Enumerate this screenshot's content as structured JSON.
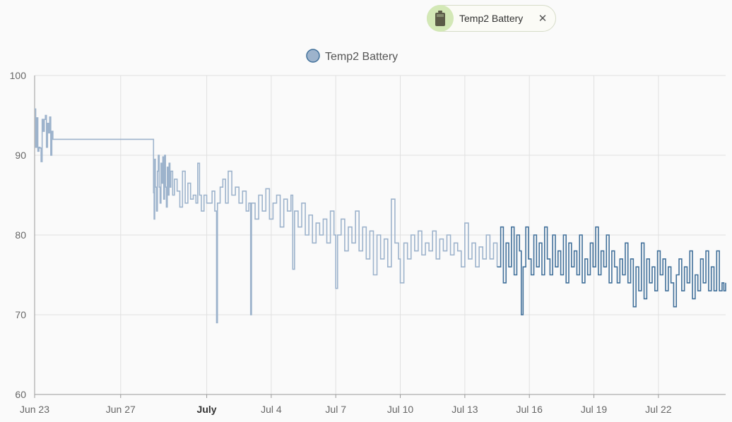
{
  "chip": {
    "label": "Temp2 Battery",
    "close_glyph": "✕",
    "icon": "battery-icon"
  },
  "colors": {
    "series_light": "#9db3cc",
    "series_dark": "#41709a",
    "legend_fill": "#9db3cc",
    "legend_stroke": "#41709a",
    "chip_accent": "#d3e8b6",
    "grid": "#e0e0e0"
  },
  "chart_data": {
    "type": "line",
    "step": true,
    "legend": {
      "label": "Temp2 Battery",
      "placement": "top-center"
    },
    "ylim": [
      60,
      100
    ],
    "yticks": [
      60,
      70,
      80,
      90,
      100
    ],
    "xlim": [
      "2023-06-23",
      "2023-07-25T03:00"
    ],
    "xticks": [
      {
        "date": "2023-06-23",
        "label": "Jun 23",
        "bold": false
      },
      {
        "date": "2023-06-27",
        "label": "Jun 27",
        "bold": false
      },
      {
        "date": "2023-07-01",
        "label": "July",
        "bold": true
      },
      {
        "date": "2023-07-04",
        "label": "Jul 4",
        "bold": false
      },
      {
        "date": "2023-07-07",
        "label": "Jul 7",
        "bold": false
      },
      {
        "date": "2023-07-10",
        "label": "Jul 10",
        "bold": false
      },
      {
        "date": "2023-07-13",
        "label": "Jul 13",
        "bold": false
      },
      {
        "date": "2023-07-16",
        "label": "Jul 16",
        "bold": false
      },
      {
        "date": "2023-07-19",
        "label": "Jul 19",
        "bold": false
      },
      {
        "date": "2023-07-22",
        "label": "Jul 22",
        "bold": false
      }
    ],
    "grid": true,
    "highlight_from": "2023-07-14T16:00",
    "series": [
      {
        "name": "Temp2 Battery",
        "points": [
          [
            "2023-06-23T00:00",
            95.8
          ],
          [
            "2023-06-23T01:12",
            91.0
          ],
          [
            "2023-06-23T02:24",
            94.7
          ],
          [
            "2023-06-23T03:36",
            90.5
          ],
          [
            "2023-06-23T04:48",
            91.0
          ],
          [
            "2023-06-23T06:00",
            90.9
          ],
          [
            "2023-06-23T07:12",
            89.2
          ],
          [
            "2023-06-23T08:24",
            94.5
          ],
          [
            "2023-06-23T09:36",
            93.0
          ],
          [
            "2023-06-23T10:48",
            94.5
          ],
          [
            "2023-06-23T12:00",
            95.0
          ],
          [
            "2023-06-23T13:12",
            91.0
          ],
          [
            "2023-06-23T14:24",
            94.0
          ],
          [
            "2023-06-23T15:36",
            92.8
          ],
          [
            "2023-06-23T16:48",
            94.8
          ],
          [
            "2023-06-23T18:00",
            90.0
          ],
          [
            "2023-06-23T19:12",
            93.0
          ],
          [
            "2023-06-23T20:24",
            92.0
          ],
          [
            "2023-06-28T12:00",
            92.0
          ],
          [
            "2023-06-28T12:40",
            85.3
          ],
          [
            "2023-06-28T13:20",
            82.0
          ],
          [
            "2023-06-28T14:00",
            89.5
          ],
          [
            "2023-06-28T14:40",
            86.0
          ],
          [
            "2023-06-28T16:00",
            83.0
          ],
          [
            "2023-06-28T17:00",
            88.0
          ],
          [
            "2023-06-28T18:00",
            90.0
          ],
          [
            "2023-06-28T19:00",
            86.0
          ],
          [
            "2023-06-28T20:00",
            84.0
          ],
          [
            "2023-06-28T21:00",
            89.0
          ],
          [
            "2023-06-28T22:00",
            86.5
          ],
          [
            "2023-06-28T23:00",
            89.8
          ],
          [
            "2023-06-29T00:00",
            84.5
          ],
          [
            "2023-06-29T01:00",
            90.0
          ],
          [
            "2023-06-29T02:00",
            86.0
          ],
          [
            "2023-06-29T03:00",
            83.5
          ],
          [
            "2023-06-29T04:00",
            88.5
          ],
          [
            "2023-06-29T05:00",
            85.0
          ],
          [
            "2023-06-29T06:00",
            89.0
          ],
          [
            "2023-06-29T07:00",
            86.0
          ],
          [
            "2023-06-29T08:00",
            88.0
          ],
          [
            "2023-06-29T10:00",
            85.0
          ],
          [
            "2023-06-29T12:00",
            87.0
          ],
          [
            "2023-06-29T15:00",
            85.5
          ],
          [
            "2023-06-29T18:00",
            83.5
          ],
          [
            "2023-06-29T21:00",
            88.0
          ],
          [
            "2023-06-30T00:00",
            84.0
          ],
          [
            "2023-06-30T03:00",
            86.5
          ],
          [
            "2023-06-30T06:00",
            84.5
          ],
          [
            "2023-06-30T09:00",
            85.0
          ],
          [
            "2023-06-30T12:00",
            84.0
          ],
          [
            "2023-06-30T14:00",
            89.0
          ],
          [
            "2023-06-30T16:00",
            85.0
          ],
          [
            "2023-06-30T18:00",
            83.0
          ],
          [
            "2023-06-30T21:00",
            85.0
          ],
          [
            "2023-07-01T00:00",
            84.0
          ],
          [
            "2023-07-01T06:00",
            85.5
          ],
          [
            "2023-07-01T09:00",
            83.0
          ],
          [
            "2023-07-01T11:00",
            69.0
          ],
          [
            "2023-07-01T12:00",
            84.0
          ],
          [
            "2023-07-01T15:00",
            86.0
          ],
          [
            "2023-07-01T18:00",
            87.0
          ],
          [
            "2023-07-01T21:00",
            84.0
          ],
          [
            "2023-07-02T00:00",
            88.0
          ],
          [
            "2023-07-02T04:00",
            85.0
          ],
          [
            "2023-07-02T08:00",
            86.0
          ],
          [
            "2023-07-02T12:00",
            84.0
          ],
          [
            "2023-07-02T16:00",
            85.5
          ],
          [
            "2023-07-02T20:00",
            83.0
          ],
          [
            "2023-07-02T23:00",
            84.0
          ],
          [
            "2023-07-03T01:00",
            70.0
          ],
          [
            "2023-07-03T02:00",
            84.0
          ],
          [
            "2023-07-03T06:00",
            82.0
          ],
          [
            "2023-07-03T10:00",
            85.0
          ],
          [
            "2023-07-03T14:00",
            83.0
          ],
          [
            "2023-07-03T18:00",
            85.8
          ],
          [
            "2023-07-03T22:00",
            82.0
          ],
          [
            "2023-07-04T02:00",
            84.0
          ],
          [
            "2023-07-04T06:00",
            85.0
          ],
          [
            "2023-07-04T10:00",
            81.0
          ],
          [
            "2023-07-04T14:00",
            84.5
          ],
          [
            "2023-07-04T18:00",
            83.0
          ],
          [
            "2023-07-04T22:00",
            85.0
          ],
          [
            "2023-07-05T00:00",
            75.7
          ],
          [
            "2023-07-05T02:00",
            83.0
          ],
          [
            "2023-07-05T06:00",
            81.0
          ],
          [
            "2023-07-05T10:00",
            84.0
          ],
          [
            "2023-07-05T14:00",
            80.0
          ],
          [
            "2023-07-05T18:00",
            82.5
          ],
          [
            "2023-07-05T22:00",
            79.0
          ],
          [
            "2023-07-06T02:00",
            81.5
          ],
          [
            "2023-07-06T06:00",
            80.0
          ],
          [
            "2023-07-06T10:00",
            82.0
          ],
          [
            "2023-07-06T14:00",
            79.0
          ],
          [
            "2023-07-06T18:00",
            83.0
          ],
          [
            "2023-07-06T22:00",
            80.0
          ],
          [
            "2023-07-07T00:00",
            73.3
          ],
          [
            "2023-07-07T02:00",
            80.0
          ],
          [
            "2023-07-07T06:00",
            82.0
          ],
          [
            "2023-07-07T10:00",
            78.0
          ],
          [
            "2023-07-07T14:00",
            81.0
          ],
          [
            "2023-07-07T18:00",
            79.0
          ],
          [
            "2023-07-07T22:00",
            83.0
          ],
          [
            "2023-07-08T02:00",
            78.0
          ],
          [
            "2023-07-08T06:00",
            81.0
          ],
          [
            "2023-07-08T10:00",
            77.0
          ],
          [
            "2023-07-08T14:00",
            80.5
          ],
          [
            "2023-07-08T18:00",
            75.0
          ],
          [
            "2023-07-08T22:00",
            80.0
          ],
          [
            "2023-07-09T02:00",
            77.0
          ],
          [
            "2023-07-09T06:00",
            79.5
          ],
          [
            "2023-07-09T10:00",
            76.0
          ],
          [
            "2023-07-09T14:00",
            84.5
          ],
          [
            "2023-07-09T18:00",
            79.0
          ],
          [
            "2023-07-09T22:00",
            77.0
          ],
          [
            "2023-07-10T00:00",
            74.0
          ],
          [
            "2023-07-10T04:00",
            79.0
          ],
          [
            "2023-07-10T08:00",
            77.0
          ],
          [
            "2023-07-10T12:00",
            80.0
          ],
          [
            "2023-07-10T16:00",
            78.0
          ],
          [
            "2023-07-10T20:00",
            80.5
          ],
          [
            "2023-07-11T00:00",
            77.5
          ],
          [
            "2023-07-11T04:00",
            79.0
          ],
          [
            "2023-07-11T08:00",
            78.0
          ],
          [
            "2023-07-11T12:00",
            80.5
          ],
          [
            "2023-07-11T16:00",
            77.0
          ],
          [
            "2023-07-11T20:00",
            79.5
          ],
          [
            "2023-07-12T00:00",
            78.0
          ],
          [
            "2023-07-12T04:00",
            80.0
          ],
          [
            "2023-07-12T08:00",
            77.5
          ],
          [
            "2023-07-12T12:00",
            79.0
          ],
          [
            "2023-07-12T16:00",
            78.0
          ],
          [
            "2023-07-12T20:00",
            76.0
          ],
          [
            "2023-07-13T00:00",
            81.5
          ],
          [
            "2023-07-13T04:00",
            77.0
          ],
          [
            "2023-07-13T08:00",
            79.0
          ],
          [
            "2023-07-13T12:00",
            76.0
          ],
          [
            "2023-07-13T16:00",
            78.5
          ],
          [
            "2023-07-13T20:00",
            77.0
          ],
          [
            "2023-07-14T00:00",
            80.0
          ],
          [
            "2023-07-14T04:00",
            77.0
          ],
          [
            "2023-07-14T08:00",
            79.0
          ],
          [
            "2023-07-14T12:00",
            76.0
          ],
          [
            "2023-07-14T16:00",
            81.0
          ],
          [
            "2023-07-14T19:00",
            74.0
          ],
          [
            "2023-07-14T22:00",
            79.0
          ],
          [
            "2023-07-15T01:00",
            76.0
          ],
          [
            "2023-07-15T04:00",
            81.0
          ],
          [
            "2023-07-15T07:00",
            75.0
          ],
          [
            "2023-07-15T10:00",
            80.0
          ],
          [
            "2023-07-15T13:00",
            78.0
          ],
          [
            "2023-07-15T15:00",
            70.0
          ],
          [
            "2023-07-15T17:00",
            76.0
          ],
          [
            "2023-07-15T20:00",
            81.0
          ],
          [
            "2023-07-15T23:00",
            77.0
          ],
          [
            "2023-07-16T02:00",
            75.0
          ],
          [
            "2023-07-16T05:00",
            80.0
          ],
          [
            "2023-07-16T08:00",
            76.0
          ],
          [
            "2023-07-16T11:00",
            79.0
          ],
          [
            "2023-07-16T14:00",
            75.0
          ],
          [
            "2023-07-16T17:00",
            81.0
          ],
          [
            "2023-07-16T20:00",
            77.0
          ],
          [
            "2023-07-16T23:00",
            75.0
          ],
          [
            "2023-07-17T02:00",
            80.0
          ],
          [
            "2023-07-17T05:00",
            76.0
          ],
          [
            "2023-07-17T08:00",
            78.0
          ],
          [
            "2023-07-17T11:00",
            75.0
          ],
          [
            "2023-07-17T14:00",
            80.0
          ],
          [
            "2023-07-17T17:00",
            74.0
          ],
          [
            "2023-07-17T20:00",
            79.0
          ],
          [
            "2023-07-17T23:00",
            76.0
          ],
          [
            "2023-07-18T02:00",
            78.0
          ],
          [
            "2023-07-18T05:00",
            75.0
          ],
          [
            "2023-07-18T08:00",
            80.0
          ],
          [
            "2023-07-18T11:00",
            74.0
          ],
          [
            "2023-07-18T14:00",
            77.0
          ],
          [
            "2023-07-18T17:00",
            75.0
          ],
          [
            "2023-07-18T20:00",
            79.0
          ],
          [
            "2023-07-18T23:00",
            76.0
          ],
          [
            "2023-07-19T02:00",
            81.0
          ],
          [
            "2023-07-19T05:00",
            75.0
          ],
          [
            "2023-07-19T08:00",
            78.0
          ],
          [
            "2023-07-19T11:00",
            76.0
          ],
          [
            "2023-07-19T14:00",
            80.0
          ],
          [
            "2023-07-19T17:00",
            74.0
          ],
          [
            "2023-07-19T20:00",
            78.0
          ],
          [
            "2023-07-19T23:00",
            76.0
          ],
          [
            "2023-07-20T02:00",
            74.0
          ],
          [
            "2023-07-20T05:00",
            77.0
          ],
          [
            "2023-07-20T08:00",
            75.0
          ],
          [
            "2023-07-20T11:00",
            79.0
          ],
          [
            "2023-07-20T14:00",
            74.0
          ],
          [
            "2023-07-20T17:00",
            77.0
          ],
          [
            "2023-07-20T20:00",
            71.0
          ],
          [
            "2023-07-20T23:00",
            76.0
          ],
          [
            "2023-07-21T02:00",
            73.0
          ],
          [
            "2023-07-21T05:00",
            79.0
          ],
          [
            "2023-07-21T08:00",
            72.0
          ],
          [
            "2023-07-21T11:00",
            77.0
          ],
          [
            "2023-07-21T14:00",
            74.0
          ],
          [
            "2023-07-21T17:00",
            76.0
          ],
          [
            "2023-07-21T20:00",
            73.0
          ],
          [
            "2023-07-21T23:00",
            78.0
          ],
          [
            "2023-07-22T02:00",
            75.0
          ],
          [
            "2023-07-22T05:00",
            77.0
          ],
          [
            "2023-07-22T08:00",
            73.0
          ],
          [
            "2023-07-22T11:00",
            76.0
          ],
          [
            "2023-07-22T14:00",
            74.0
          ],
          [
            "2023-07-22T17:00",
            71.0
          ],
          [
            "2023-07-22T20:00",
            75.0
          ],
          [
            "2023-07-22T23:00",
            77.0
          ],
          [
            "2023-07-23T02:00",
            73.0
          ],
          [
            "2023-07-23T05:00",
            76.0
          ],
          [
            "2023-07-23T08:00",
            74.0
          ],
          [
            "2023-07-23T11:00",
            78.0
          ],
          [
            "2023-07-23T14:00",
            72.0
          ],
          [
            "2023-07-23T17:00",
            75.0
          ],
          [
            "2023-07-23T20:00",
            73.0
          ],
          [
            "2023-07-23T23:00",
            77.0
          ],
          [
            "2023-07-24T02:00",
            74.0
          ],
          [
            "2023-07-24T05:00",
            78.0
          ],
          [
            "2023-07-24T08:00",
            73.0
          ],
          [
            "2023-07-24T11:00",
            76.0
          ],
          [
            "2023-07-24T14:00",
            73.0
          ],
          [
            "2023-07-24T17:00",
            78.0
          ],
          [
            "2023-07-24T20:00",
            73.0
          ],
          [
            "2023-07-24T23:00",
            74.0
          ],
          [
            "2023-07-25T01:00",
            73.0
          ],
          [
            "2023-07-25T03:00",
            74.0
          ]
        ]
      }
    ]
  }
}
